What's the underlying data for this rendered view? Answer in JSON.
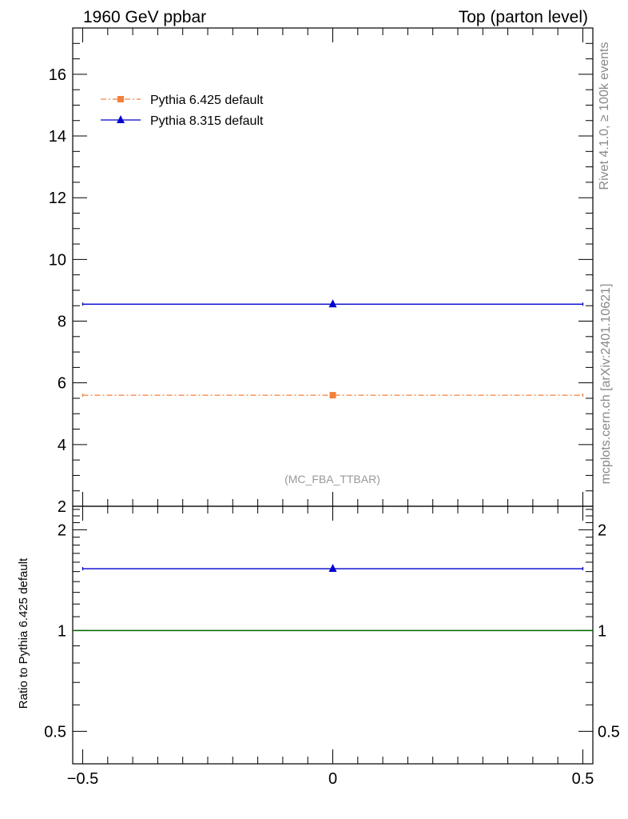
{
  "header": {
    "left_title": "1960 GeV ppbar",
    "right_title": "Top (parton level)"
  },
  "side_labels": {
    "rivet": "Rivet 4.1.0, ≥ 100k events",
    "source": "mcplots.cern.ch [arXiv:2401.10621]"
  },
  "watermark": "(MC_FBA_TTBAR)",
  "chart_data": [
    {
      "type": "line",
      "panel": "main",
      "xlim": [
        -0.52,
        0.52
      ],
      "ylim": [
        2,
        17.5
      ],
      "yticks": [
        2,
        4,
        6,
        8,
        10,
        12,
        14,
        16
      ],
      "ytick_labels": [
        "2",
        "4",
        "6",
        "8",
        "10",
        "12",
        "14",
        "16"
      ],
      "legend": "top-left",
      "series": [
        {
          "name": "Pythia 6.425 default",
          "color": "#f47f3b",
          "marker": "square",
          "style": "dash-dot",
          "x": [
            0
          ],
          "xerr": [
            0.5
          ],
          "y": [
            5.6
          ]
        },
        {
          "name": "Pythia 8.315 default",
          "color": "#0000cc",
          "marker": "triangle",
          "style": "solid",
          "x": [
            0
          ],
          "xerr": [
            0.5
          ],
          "y": [
            8.55
          ]
        }
      ]
    },
    {
      "type": "line",
      "panel": "ratio",
      "ylabel": "Ratio to Pythia 6.425 default",
      "xlim": [
        -0.52,
        0.52
      ],
      "ylim": [
        0.4,
        2.35
      ],
      "ytick_labels": [
        "0.5",
        "1",
        "2"
      ],
      "yticks": [
        0.5,
        1,
        2
      ],
      "xticks": [
        -0.5,
        0,
        0.5
      ],
      "xtick_labels": [
        "−0.5",
        "0",
        "0.5"
      ],
      "reference_line": {
        "y": 1,
        "color": "#006400"
      },
      "series": [
        {
          "name": "Pythia 8.315 default",
          "color": "#0000cc",
          "marker": "triangle",
          "x": [
            0
          ],
          "xerr": [
            0.5
          ],
          "y": [
            1.53
          ]
        }
      ]
    }
  ]
}
